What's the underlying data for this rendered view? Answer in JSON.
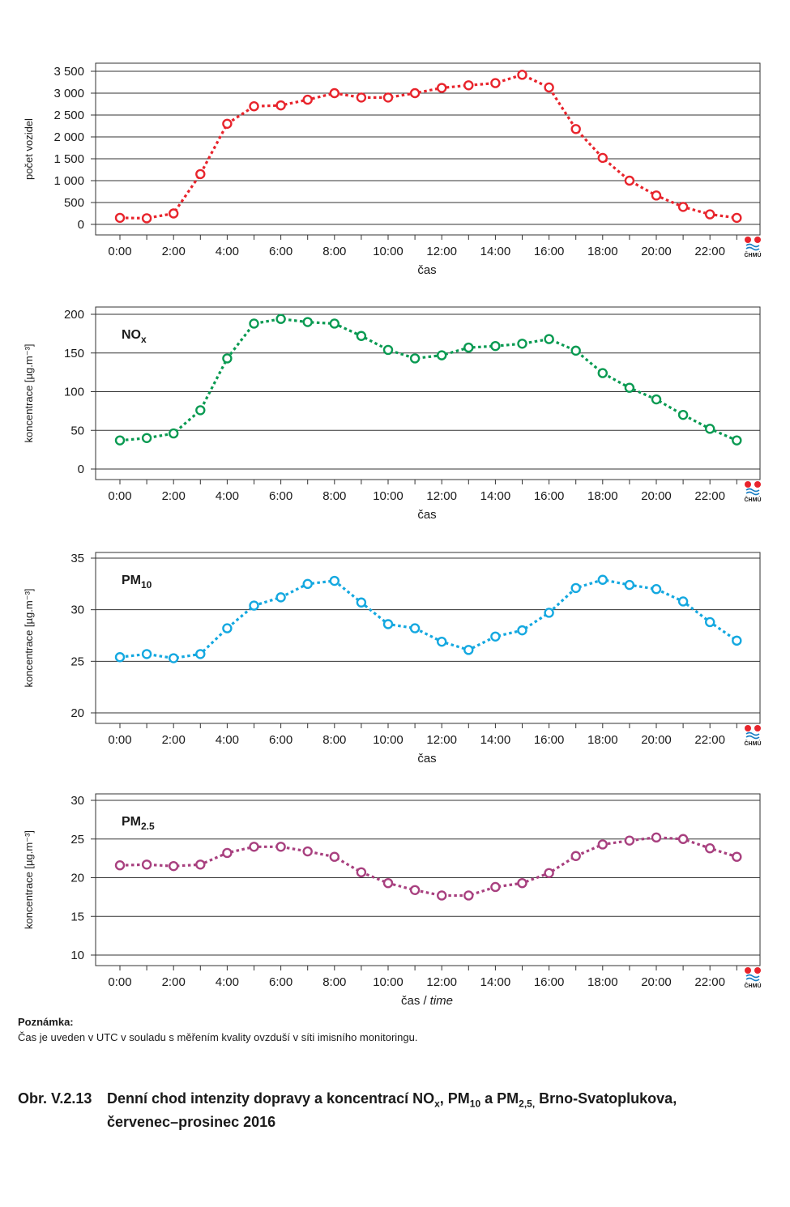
{
  "x_labels": [
    "0:00",
    "2:00",
    "4:00",
    "6:00",
    "8:00",
    "10:00",
    "12:00",
    "14:00",
    "16:00",
    "18:00",
    "20:00",
    "22:00"
  ],
  "logo_text": "ČHMÚ",
  "chart_data": [
    {
      "type": "line",
      "ylabel": "počet vozidel",
      "xlabel_main": "čas",
      "xlabel_alt": "",
      "series_label_main": "",
      "series_label_sub": "",
      "color": "#e8242c",
      "ylim": [
        0,
        3500
      ],
      "yticks": [
        0,
        500,
        1000,
        1500,
        2000,
        2500,
        3000,
        3500
      ],
      "ytick_labels": [
        "0",
        "500",
        "1 000",
        "1 500",
        "2 000",
        "2 500",
        "3 000",
        "3 500"
      ],
      "x": [
        0,
        1,
        2,
        3,
        4,
        5,
        6,
        7,
        8,
        9,
        10,
        11,
        12,
        13,
        14,
        15,
        16,
        17,
        18,
        19,
        20,
        21,
        22,
        23
      ],
      "values": [
        150,
        140,
        250,
        1150,
        2300,
        2700,
        2720,
        2850,
        3000,
        2900,
        2900,
        3000,
        3120,
        3180,
        3230,
        3420,
        3130,
        2180,
        1520,
        1000,
        660,
        400,
        230,
        150
      ]
    },
    {
      "type": "line",
      "ylabel": "koncentrace [µg.m⁻³]",
      "xlabel_main": "čas",
      "xlabel_alt": "",
      "series_label_main": "NO",
      "series_label_sub": "x",
      "color": "#0a9a52",
      "ylim": [
        0,
        200
      ],
      "yticks": [
        0,
        50,
        100,
        150,
        200
      ],
      "ytick_labels": [
        "0",
        "50",
        "100",
        "150",
        "200"
      ],
      "x": [
        0,
        1,
        2,
        3,
        4,
        5,
        6,
        7,
        8,
        9,
        10,
        11,
        12,
        13,
        14,
        15,
        16,
        17,
        18,
        19,
        20,
        21,
        22,
        23
      ],
      "values": [
        37,
        40,
        46,
        76,
        143,
        188,
        194,
        190,
        188,
        172,
        154,
        143,
        147,
        157,
        159,
        162,
        168,
        153,
        124,
        105,
        90,
        70,
        52,
        37
      ]
    },
    {
      "type": "line",
      "ylabel": "koncentrace [µg.m⁻³]",
      "xlabel_main": "čas",
      "xlabel_alt": "",
      "series_label_main": "PM",
      "series_label_sub": "10",
      "color": "#14a8e0",
      "ylim": [
        20,
        35
      ],
      "yticks": [
        20,
        25,
        30,
        35
      ],
      "ytick_labels": [
        "20",
        "25",
        "30",
        "35"
      ],
      "x": [
        0,
        1,
        2,
        3,
        4,
        5,
        6,
        7,
        8,
        9,
        10,
        11,
        12,
        13,
        14,
        15,
        16,
        17,
        18,
        19,
        20,
        21,
        22,
        23
      ],
      "values": [
        25.4,
        25.7,
        25.3,
        25.7,
        28.2,
        30.4,
        31.2,
        32.5,
        32.8,
        30.7,
        28.6,
        28.2,
        26.9,
        26.1,
        27.4,
        28.0,
        29.7,
        32.1,
        32.9,
        32.4,
        32.0,
        30.8,
        28.8,
        27.0
      ]
    },
    {
      "type": "line",
      "ylabel": "koncentrace [µg.m⁻³]",
      "xlabel_main": "čas /",
      "xlabel_alt": "time",
      "series_label_main": "PM",
      "series_label_sub": "2.5",
      "color": "#a8407f",
      "ylim": [
        10,
        30
      ],
      "yticks": [
        10,
        15,
        20,
        25,
        30
      ],
      "ytick_labels": [
        "10",
        "15",
        "20",
        "25",
        "30"
      ],
      "x": [
        0,
        1,
        2,
        3,
        4,
        5,
        6,
        7,
        8,
        9,
        10,
        11,
        12,
        13,
        14,
        15,
        16,
        17,
        18,
        19,
        20,
        21,
        22,
        23
      ],
      "values": [
        21.6,
        21.7,
        21.5,
        21.7,
        23.2,
        24.0,
        24.0,
        23.4,
        22.7,
        20.7,
        19.3,
        18.4,
        17.7,
        17.7,
        18.8,
        19.3,
        20.6,
        22.8,
        24.3,
        24.8,
        25.2,
        25.0,
        23.8,
        22.7
      ]
    }
  ],
  "note": {
    "title": "Poznámka:",
    "text": "Čas je uveden v UTC v souladu s měřením kvality ovzduší v síti imisního monitoringu."
  },
  "caption": {
    "number": "Obr. V.2.13",
    "line1_a": "Denní chod intenzity dopravy a koncentrací NO",
    "line1_sub1": "x",
    "line1_b": ", PM",
    "line1_sub2": "10",
    "line1_c": " a PM",
    "line1_sub3": "2,5,",
    "line1_d": " Brno-Svatoplukova,",
    "line2": "červenec–prosinec 2016"
  }
}
